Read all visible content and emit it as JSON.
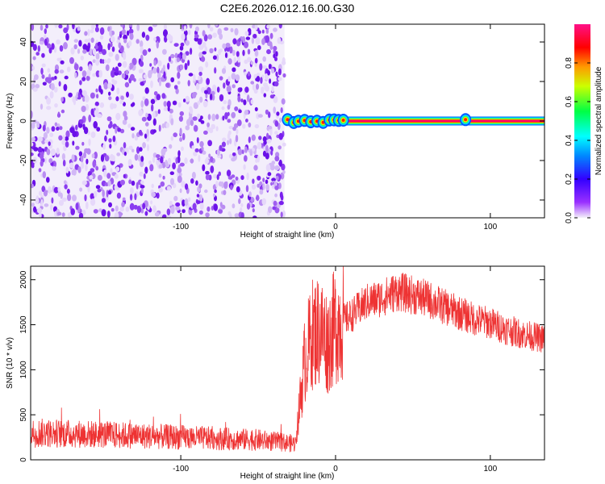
{
  "title": "C2E6.2026.012.16.00.G30",
  "chart_data": [
    {
      "type": "heatmap",
      "xlabel": "Height of straight line (km)",
      "ylabel": "Frequency (Hz)",
      "xlim": [
        -197,
        135
      ],
      "ylim": [
        -49,
        49
      ],
      "xticks": [
        -100,
        0,
        100
      ],
      "yticks": [
        -40,
        -20,
        0,
        20,
        40
      ],
      "colorbar": {
        "label": "Normalized spectral amplitude",
        "range": [
          0.0,
          1.0
        ],
        "ticks": [
          "0.0",
          "0.2",
          "0.4",
          "0.6",
          "0.8"
        ],
        "colormap": [
          "#f0f0f8",
          "#8800ff",
          "#0000ff",
          "#00ffff",
          "#00ff00",
          "#ffff00",
          "#ff0000",
          "#ff0088"
        ]
      },
      "noise_region": {
        "x": [
          -197,
          -33
        ],
        "freq": [
          -49,
          49
        ],
        "amplitude_range": [
          0.0,
          0.2
        ]
      },
      "signal_line": {
        "x": [
          -33,
          135
        ],
        "freq": 0,
        "amplitude": 1.0
      }
    },
    {
      "type": "line",
      "xlabel": "Height of straight line (km)",
      "ylabel": "SNR (10 * v/v)",
      "xlim": [
        -197,
        135
      ],
      "ylim": [
        0,
        2150
      ],
      "xticks": [
        -100,
        0,
        100
      ],
      "yticks": [
        0,
        500,
        1000,
        1500,
        2000
      ],
      "color": "#ee3333",
      "series": [
        {
          "x": [
            -197,
            -150,
            -100,
            -50,
            -26,
            -20,
            -15,
            -10,
            -5,
            0,
            10,
            20,
            30,
            40,
            50,
            60,
            70,
            80,
            90,
            100,
            110,
            120,
            135
          ],
          "y": [
            300,
            280,
            250,
            220,
            180,
            1100,
            1400,
            1450,
            1300,
            1500,
            1600,
            1750,
            1800,
            1870,
            1830,
            1780,
            1700,
            1630,
            1560,
            1520,
            1450,
            1400,
            1340
          ]
        }
      ]
    }
  ]
}
